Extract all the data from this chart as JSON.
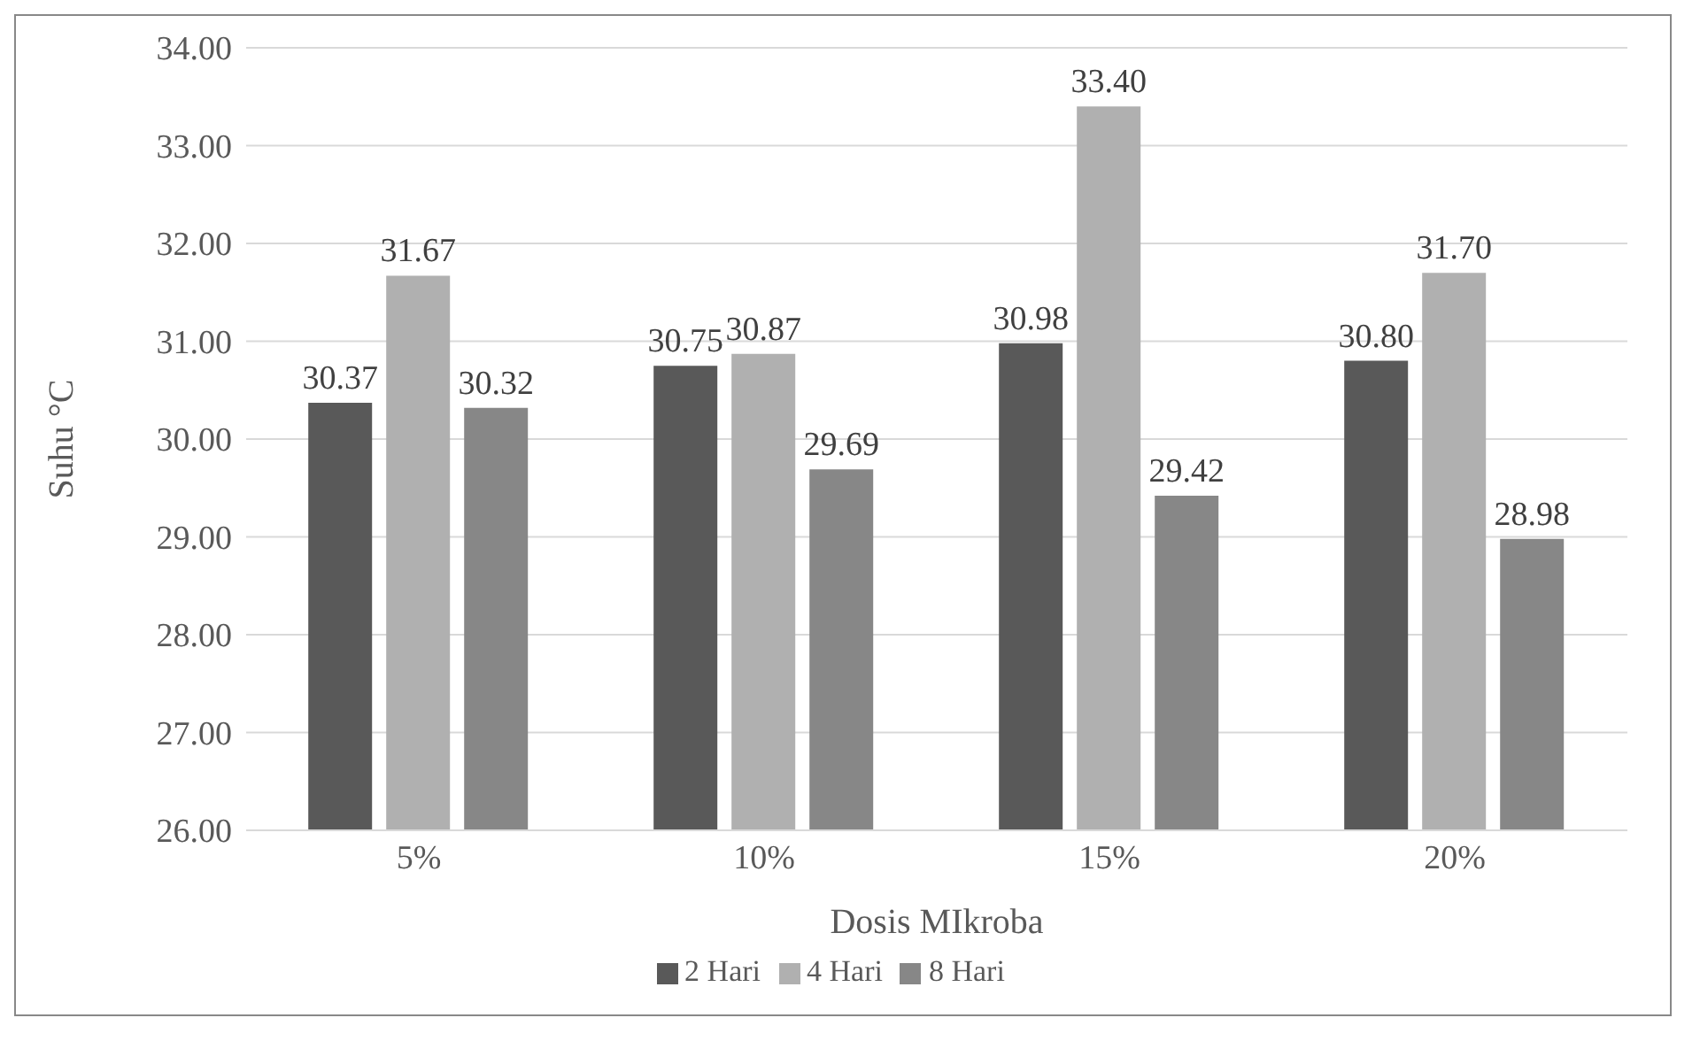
{
  "chart_data": {
    "type": "bar",
    "xlabel": "Dosis MIkroba",
    "ylabel": "Suhu °C",
    "categories": [
      "5%",
      "10%",
      "15%",
      "20%"
    ],
    "series": [
      {
        "name": "2 Hari",
        "color": "#595959",
        "values": [
          30.37,
          30.75,
          30.98,
          30.8
        ],
        "value_labels": [
          "30.37",
          "30.75",
          "30.98",
          "30.80"
        ]
      },
      {
        "name": "4 Hari",
        "color": "#b0b0b0",
        "values": [
          31.67,
          30.87,
          33.4,
          31.7
        ],
        "value_labels": [
          "31.67",
          "30.87",
          "33.40",
          "31.70"
        ]
      },
      {
        "name": "8 Hari",
        "color": "#878787",
        "values": [
          30.32,
          29.69,
          29.42,
          28.98
        ],
        "value_labels": [
          "30.32",
          "29.69",
          "29.42",
          "28.98"
        ]
      }
    ],
    "ylim": [
      26,
      34
    ],
    "yticks": [
      {
        "value": 26,
        "label": "26.00"
      },
      {
        "value": 27,
        "label": "27.00"
      },
      {
        "value": 28,
        "label": "28.00"
      },
      {
        "value": 29,
        "label": "29.00"
      },
      {
        "value": 30,
        "label": "30.00"
      },
      {
        "value": 31,
        "label": "31.00"
      },
      {
        "value": 32,
        "label": "32.00"
      },
      {
        "value": 33,
        "label": "33.00"
      },
      {
        "value": 34,
        "label": "34.00"
      }
    ],
    "grid": "y",
    "legend": "bottom"
  }
}
